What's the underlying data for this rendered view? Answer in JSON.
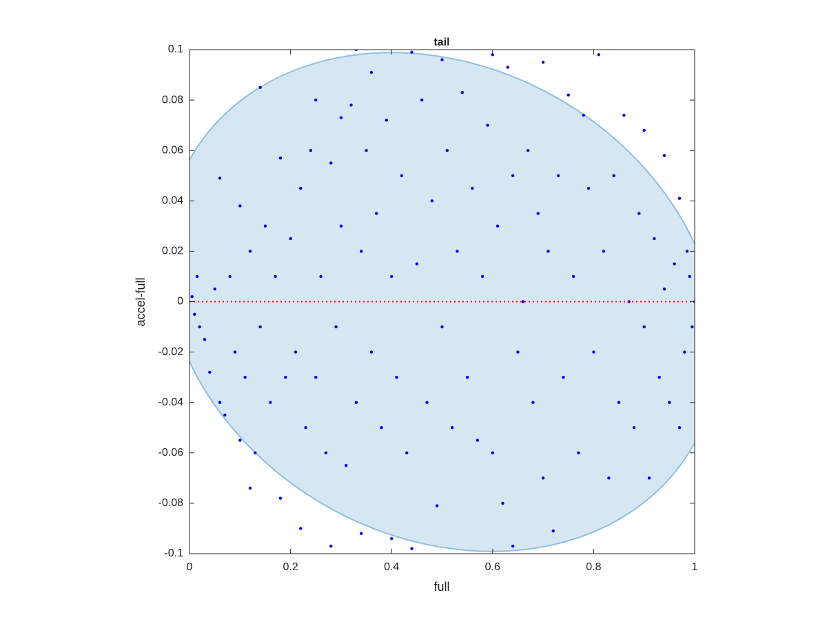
{
  "chart_data": {
    "type": "scatter",
    "title": "tail",
    "xlabel": "full",
    "ylabel": "accel-full",
    "xlim": [
      0,
      1
    ],
    "ylim": [
      -0.1,
      0.1
    ],
    "xticks": [
      0,
      0.2,
      0.4,
      0.6,
      0.8,
      1
    ],
    "yticks": [
      -0.1,
      -0.08,
      -0.06,
      -0.04,
      -0.02,
      0,
      0.02,
      0.04,
      0.06,
      0.08,
      0.1
    ],
    "color": "#0000ee",
    "x": [
      0.005,
      0.01,
      0.015,
      0.02,
      0.03,
      0.04,
      0.05,
      0.06,
      0.06,
      0.07,
      0.08,
      0.09,
      0.1,
      0.1,
      0.11,
      0.12,
      0.12,
      0.13,
      0.14,
      0.14,
      0.15,
      0.16,
      0.17,
      0.18,
      0.18,
      0.19,
      0.2,
      0.21,
      0.22,
      0.22,
      0.23,
      0.24,
      0.25,
      0.25,
      0.26,
      0.27,
      0.28,
      0.28,
      0.29,
      0.3,
      0.3,
      0.31,
      0.32,
      0.33,
      0.33,
      0.34,
      0.34,
      0.35,
      0.36,
      0.36,
      0.37,
      0.38,
      0.39,
      0.4,
      0.4,
      0.41,
      0.42,
      0.43,
      0.44,
      0.44,
      0.45,
      0.46,
      0.47,
      0.48,
      0.49,
      0.5,
      0.5,
      0.51,
      0.52,
      0.53,
      0.54,
      0.55,
      0.56,
      0.57,
      0.58,
      0.59,
      0.6,
      0.6,
      0.61,
      0.62,
      0.63,
      0.64,
      0.64,
      0.65,
      0.66,
      0.67,
      0.68,
      0.69,
      0.7,
      0.7,
      0.71,
      0.72,
      0.73,
      0.74,
      0.75,
      0.76,
      0.77,
      0.78,
      0.79,
      0.8,
      0.81,
      0.82,
      0.83,
      0.84,
      0.85,
      0.86,
      0.87,
      0.88,
      0.89,
      0.9,
      0.9,
      0.91,
      0.92,
      0.93,
      0.94,
      0.94,
      0.95,
      0.96,
      0.97,
      0.97,
      0.98,
      0.99,
      1.0,
      0.995,
      0.985
    ],
    "y": [
      0.002,
      -0.005,
      0.01,
      -0.01,
      -0.015,
      -0.028,
      0.005,
      0.049,
      -0.04,
      -0.045,
      0.01,
      -0.02,
      0.038,
      -0.055,
      -0.03,
      0.02,
      -0.074,
      -0.06,
      0.085,
      -0.01,
      0.03,
      -0.04,
      0.01,
      0.057,
      -0.078,
      -0.03,
      0.025,
      -0.02,
      0.045,
      -0.09,
      -0.05,
      0.06,
      0.08,
      -0.03,
      0.01,
      -0.06,
      0.055,
      -0.097,
      -0.01,
      0.073,
      0.03,
      -0.065,
      0.078,
      0.1,
      -0.04,
      0.02,
      -0.092,
      0.06,
      0.091,
      -0.02,
      0.035,
      -0.05,
      0.072,
      0.01,
      -0.094,
      -0.03,
      0.05,
      -0.06,
      0.099,
      -0.098,
      0.015,
      0.08,
      -0.04,
      0.04,
      -0.081,
      0.096,
      -0.01,
      0.06,
      -0.05,
      0.02,
      0.083,
      -0.03,
      0.045,
      -0.055,
      0.01,
      0.07,
      -0.06,
      0.098,
      0.03,
      -0.08,
      0.093,
      -0.097,
      0.05,
      -0.02,
      0,
      0.06,
      -0.04,
      0.035,
      0.095,
      -0.07,
      0.02,
      -0.091,
      0.05,
      -0.03,
      0.082,
      0.01,
      -0.06,
      0.074,
      0.045,
      -0.02,
      0.098,
      0.02,
      -0.07,
      0.05,
      -0.04,
      0.074,
      0,
      -0.05,
      0.035,
      0.068,
      -0.01,
      -0.07,
      0.025,
      -0.03,
      0.058,
      0.005,
      -0.04,
      0.015,
      0.041,
      -0.05,
      -0.02,
      0.01,
      0,
      -0.01,
      0.02
    ],
    "reference_line": {
      "x": [
        0,
        1
      ],
      "values": [
        0,
        0
      ],
      "color": "#ff0000"
    }
  }
}
